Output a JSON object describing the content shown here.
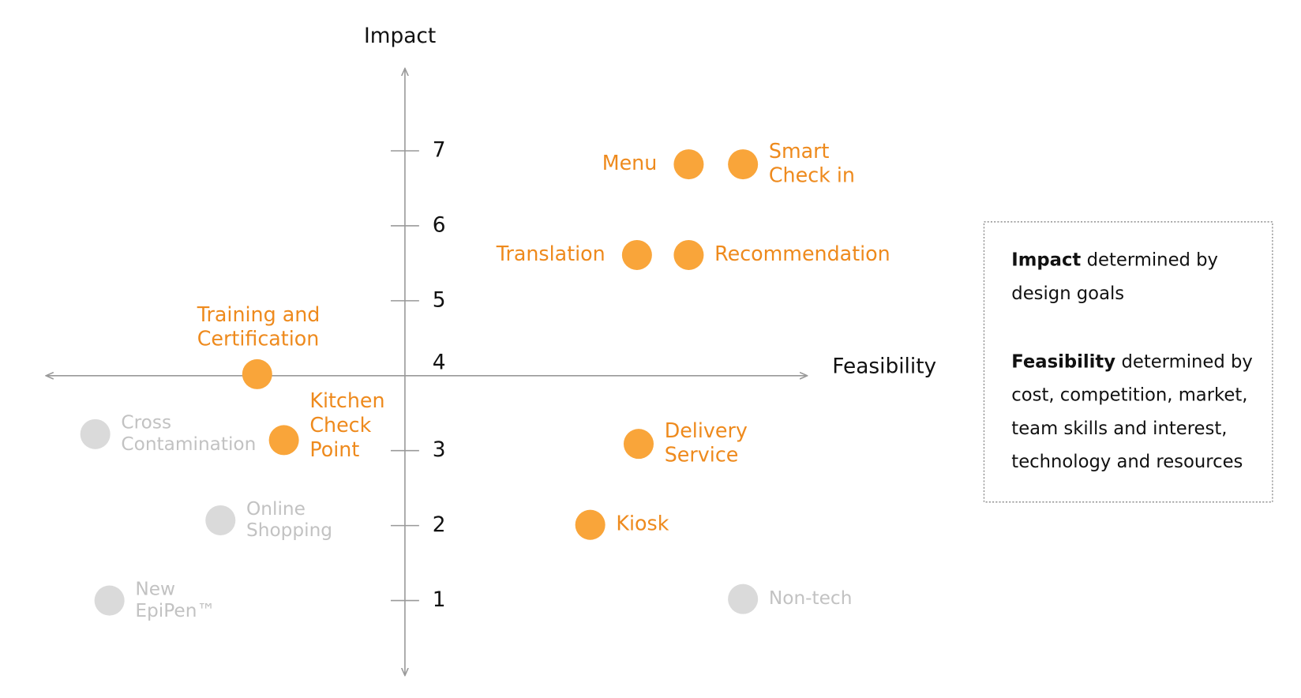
{
  "chart_data": {
    "type": "scatter",
    "xlabel": "Feasibility",
    "ylabel": "Impact",
    "xlim": [
      -4.3,
      4.82
    ],
    "ylim": [
      0,
      8.1
    ],
    "yticks": [
      1,
      2,
      3,
      4,
      5,
      6,
      7
    ],
    "x_axis_at": 4,
    "points": [
      {
        "label": [
          "Menu"
        ],
        "x": 3.4,
        "y": 6.82,
        "color": "#f9a53a",
        "label_color": "#ee8a1d"
      },
      {
        "label": [
          "Smart",
          "Check in"
        ],
        "x": 4.05,
        "y": 6.82,
        "color": "#f9a53a",
        "label_color": "#ee8a1d"
      },
      {
        "label": [
          "Translation"
        ],
        "x": 2.78,
        "y": 5.61,
        "color": "#f9a53a",
        "label_color": "#ee8a1d"
      },
      {
        "label": [
          "Recommendation"
        ],
        "x": 3.4,
        "y": 5.61,
        "color": "#f9a53a",
        "label_color": "#ee8a1d"
      },
      {
        "label": [
          "Training and",
          "Certification"
        ],
        "x": -1.77,
        "y": 4.02,
        "color": "#f9a53a",
        "label_color": "#ee8a1d"
      },
      {
        "label": [
          "Kitchen",
          "Check",
          "Point"
        ],
        "x": -1.45,
        "y": 3.14,
        "color": "#f9a53a",
        "label_color": "#ee8a1d"
      },
      {
        "label": [
          "Delivery",
          "Service"
        ],
        "x": 2.8,
        "y": 3.09,
        "color": "#f9a53a",
        "label_color": "#ee8a1d"
      },
      {
        "label": [
          "Kiosk"
        ],
        "x": 2.22,
        "y": 2.01,
        "color": "#f9a53a",
        "label_color": "#ee8a1d"
      },
      {
        "label": [
          "Cross",
          "Contamination"
        ],
        "x": -3.71,
        "y": 3.22,
        "color": "#dadada",
        "label_color": "#c2c2c2"
      },
      {
        "label": [
          "Online",
          "Shopping"
        ],
        "x": -2.21,
        "y": 2.07,
        "color": "#dadada",
        "label_color": "#c2c2c2"
      },
      {
        "label": [
          "New",
          "EpiPen™"
        ],
        "x": -3.54,
        "y": 1.0,
        "color": "#dadada",
        "label_color": "#c2c2c2"
      },
      {
        "label": [
          "Non-tech"
        ],
        "x": 4.05,
        "y": 1.02,
        "color": "#dadada",
        "label_color": "#c2c2c2"
      }
    ],
    "note": [
      {
        "term": "Impact",
        "lines": [
          "determined by",
          "design goals"
        ]
      },
      {
        "term": "Feasibility",
        "lines": [
          "determined by",
          "cost, competition, market,",
          "team skills and interest,",
          "technology and resources"
        ]
      }
    ]
  }
}
